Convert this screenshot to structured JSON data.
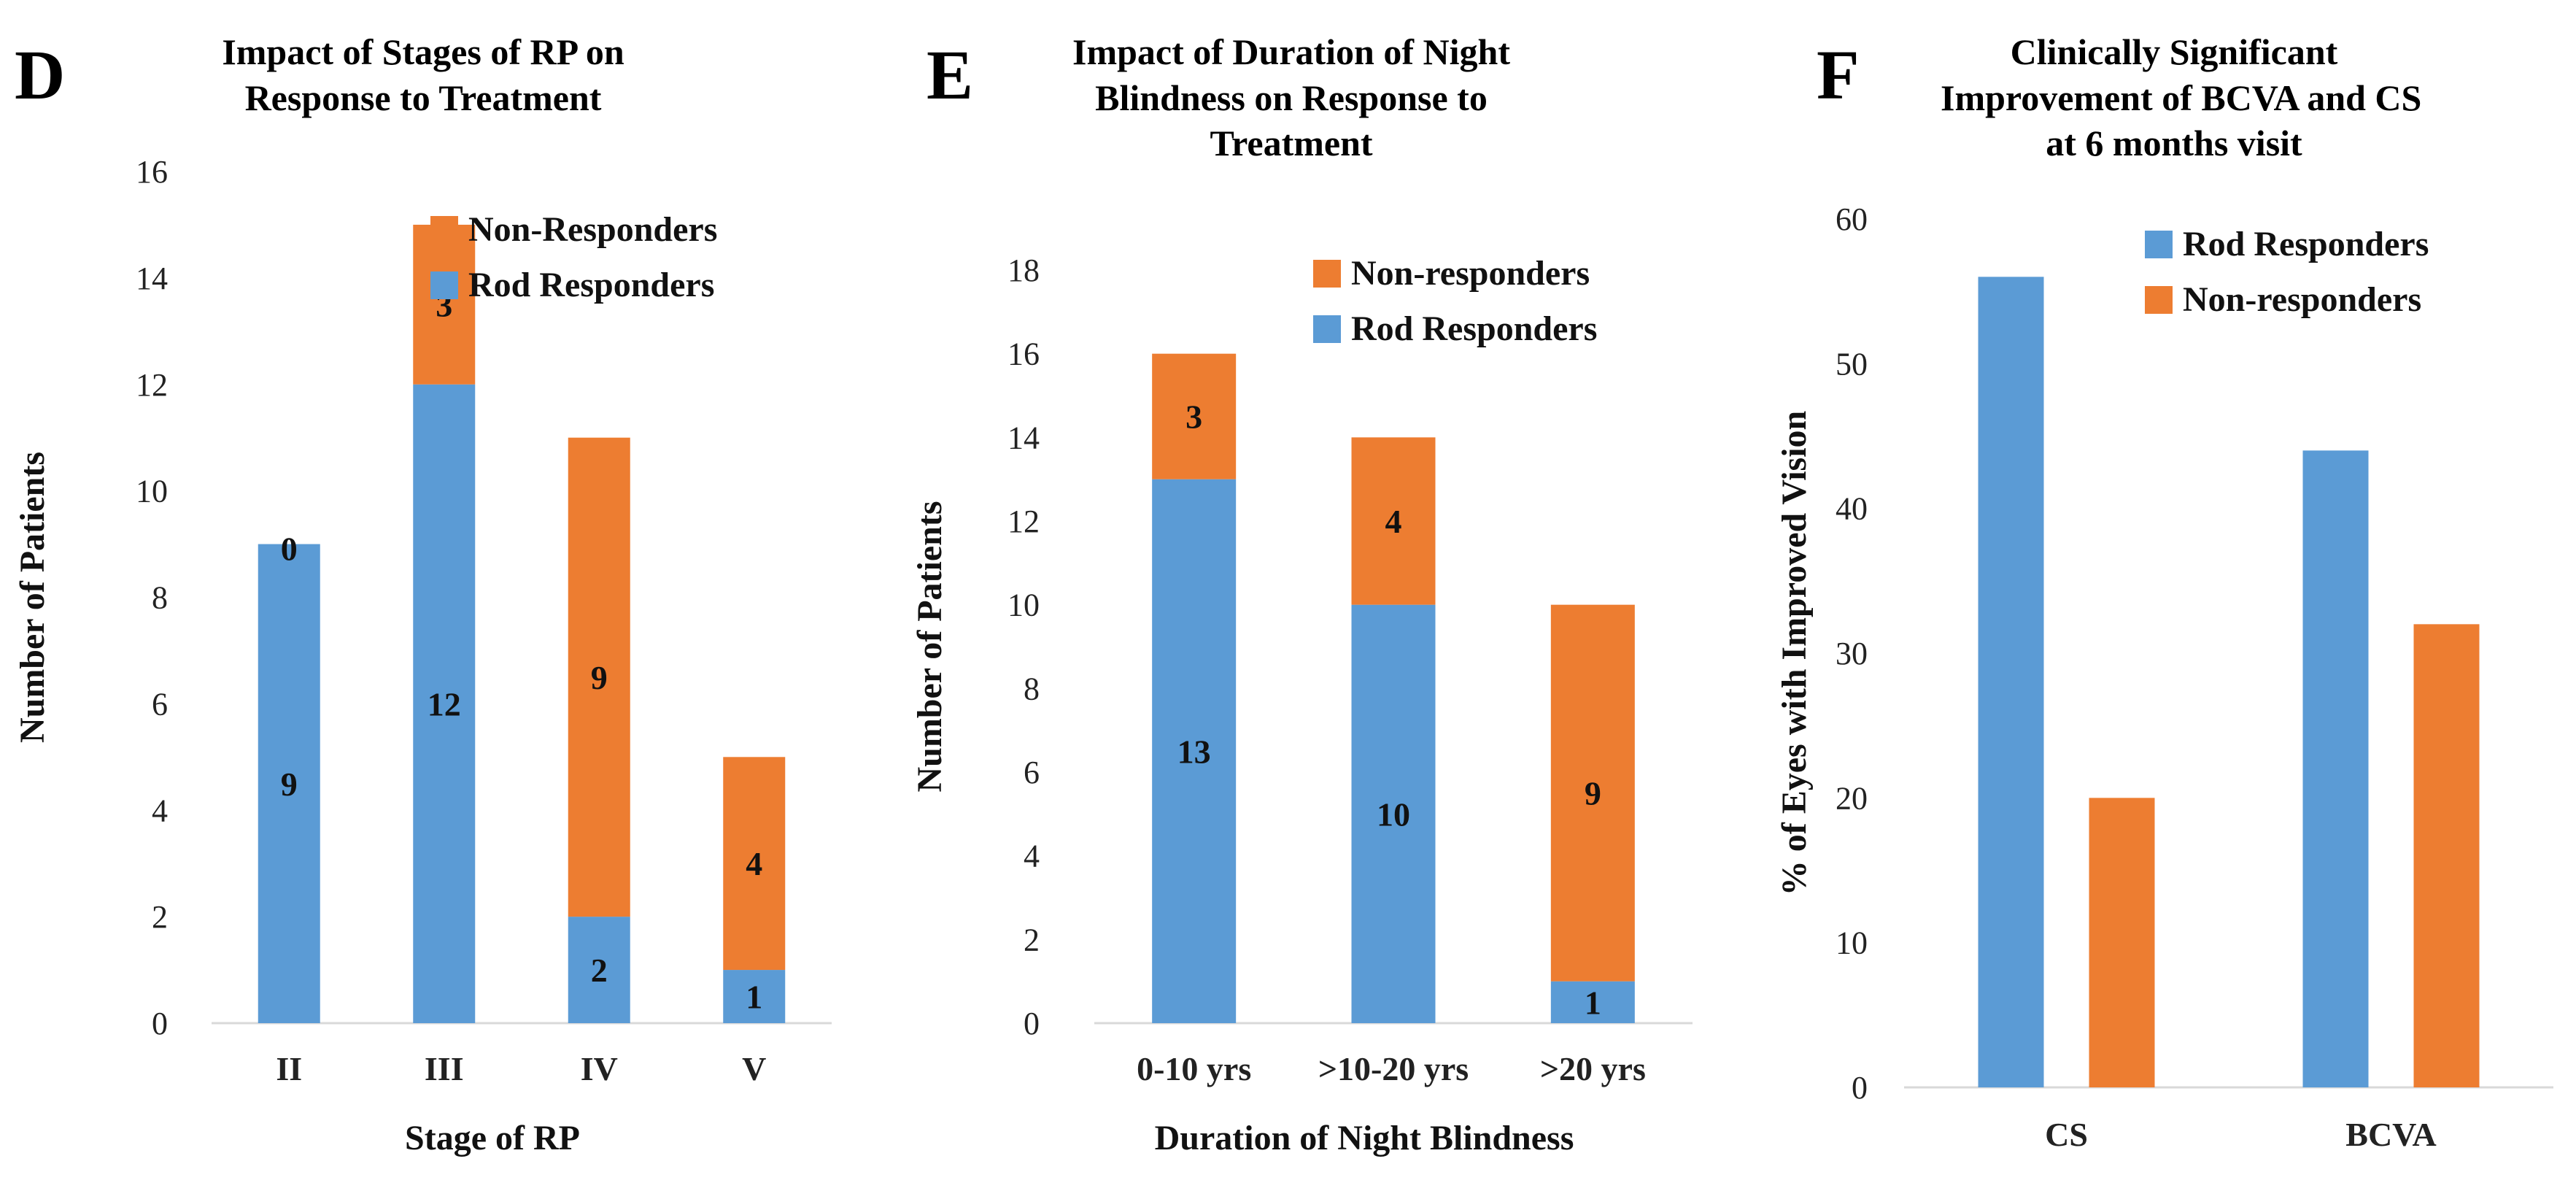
{
  "colors": {
    "blue": "#5b9bd5",
    "orange": "#ed7d31"
  },
  "panels": [
    {
      "letter": "D",
      "title_lines": [
        "Impact of Stages of RP  on",
        "Response to Treatment"
      ]
    },
    {
      "letter": "E",
      "title_lines": [
        "Impact of Duration of Night",
        "Blindness on Response to",
        "Treatment"
      ]
    },
    {
      "letter": "F",
      "title_lines": [
        "Clinically Significant",
        "Improvement of BCVA and CS",
        "at 6 months visit"
      ]
    }
  ],
  "chart_data": [
    {
      "type": "bar",
      "stacked": true,
      "title": "Impact of Stages of RP  on Response to Treatment",
      "categories": [
        "II",
        "III",
        "IV",
        "V"
      ],
      "series": [
        {
          "name": "Rod Responders",
          "values": [
            9,
            12,
            2,
            1
          ],
          "labels": [
            "9",
            "12",
            "2",
            "1"
          ],
          "color": "#5b9bd5"
        },
        {
          "name": "Non-Responders",
          "values": [
            0,
            3,
            9,
            4
          ],
          "labels": [
            "0",
            "3",
            "9",
            "4"
          ],
          "color": "#ed7d31"
        }
      ],
      "xlabel": "Stage of RP",
      "ylabel": "Number of Patients",
      "ylim": [
        0,
        16
      ],
      "yticks": [
        0,
        2,
        4,
        6,
        8,
        10,
        12,
        14,
        16
      ],
      "legend": {
        "position": "top-right",
        "order": [
          "Non-Responders",
          "Rod Responders"
        ]
      },
      "grid": false
    },
    {
      "type": "bar",
      "stacked": true,
      "title": "Impact of Duration of Night Blindness on Response to Treatment",
      "categories": [
        "0-10 yrs",
        ">10-20 yrs",
        ">20 yrs"
      ],
      "series": [
        {
          "name": "Rod Responders",
          "values": [
            13,
            10,
            1
          ],
          "labels": [
            "13",
            "10",
            "1"
          ],
          "color": "#5b9bd5"
        },
        {
          "name": "Non-responders",
          "values": [
            3,
            4,
            9
          ],
          "labels": [
            "3",
            "4",
            "9"
          ],
          "color": "#ed7d31"
        }
      ],
      "xlabel": "Duration of Night Blindness",
      "ylabel": "Number of  Patients",
      "ylim": [
        0,
        18
      ],
      "yticks": [
        0,
        2,
        4,
        6,
        8,
        10,
        12,
        14,
        16,
        18
      ],
      "legend": {
        "position": "top-right",
        "order": [
          "Non-responders",
          "Rod Responders"
        ]
      },
      "grid": false
    },
    {
      "type": "bar",
      "stacked": false,
      "title": "Clinically Significant Improvement of BCVA and CS at 6 months visit",
      "categories": [
        "CS",
        "BCVA"
      ],
      "series": [
        {
          "name": "Rod Responders",
          "values": [
            56,
            44
          ],
          "color": "#5b9bd5"
        },
        {
          "name": "Non-responders",
          "values": [
            20,
            32
          ],
          "color": "#ed7d31"
        }
      ],
      "xlabel": "",
      "ylabel": "%  of  Eyes with Improved Vision",
      "ylim": [
        0,
        60
      ],
      "yticks": [
        0,
        10,
        20,
        30,
        40,
        50,
        60
      ],
      "legend": {
        "position": "top-right",
        "order": [
          "Rod Responders",
          "Non-responders"
        ]
      },
      "grid": false
    }
  ]
}
